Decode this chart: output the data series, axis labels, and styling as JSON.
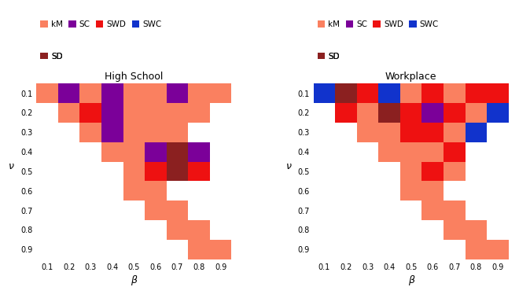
{
  "betas": [
    0.1,
    0.2,
    0.3,
    0.4,
    0.5,
    0.6,
    0.7,
    0.8,
    0.9
  ],
  "nus": [
    0.1,
    0.2,
    0.3,
    0.4,
    0.5,
    0.6,
    0.7,
    0.8,
    0.9
  ],
  "colors": {
    "kM": "#FA8060",
    "SC": "#7B0099",
    "SWD": "#EE1111",
    "SWC": "#1133CC",
    "SD": "#8B2020"
  },
  "legend_colors": {
    "kM": "#FA8060",
    "SC": "#7B0099",
    "SWD": "#EE1111",
    "SWC": "#1133CC",
    "SD": "#8B2020"
  },
  "hs_grid": [
    [
      "kM",
      "SC",
      "kM",
      "SC",
      "kM",
      "kM",
      "SC",
      "kM",
      "kM"
    ],
    [
      null,
      "kM",
      "SWD",
      "SC",
      "kM",
      "kM",
      "kM",
      "kM",
      null
    ],
    [
      null,
      null,
      "kM",
      "SC",
      "kM",
      "kM",
      "kM",
      null,
      null
    ],
    [
      null,
      null,
      null,
      "kM",
      "kM",
      "SC",
      "SD",
      "SC",
      null
    ],
    [
      null,
      null,
      null,
      null,
      "kM",
      "SWD",
      "SD",
      "SWD",
      null
    ],
    [
      null,
      null,
      null,
      null,
      "kM",
      "kM",
      null,
      null,
      null
    ],
    [
      null,
      null,
      null,
      null,
      null,
      "kM",
      "kM",
      null,
      null
    ],
    [
      null,
      null,
      null,
      null,
      null,
      null,
      "kM",
      "kM",
      null
    ],
    [
      null,
      null,
      null,
      null,
      null,
      null,
      null,
      "kM",
      "kM"
    ]
  ],
  "wp_grid": [
    [
      "SWC",
      "SD",
      "SWD",
      "SWC",
      "kM",
      "SWD",
      "kM",
      "SWD",
      "SWD"
    ],
    [
      null,
      "SWD",
      "kM",
      "SD",
      "SWD",
      "SC",
      "SWD",
      "kM",
      "SWC"
    ],
    [
      null,
      null,
      "kM",
      "kM",
      "SWD",
      "SWD",
      "kM",
      "SWC",
      null
    ],
    [
      null,
      null,
      null,
      "kM",
      "kM",
      "kM",
      "SWD",
      null,
      null
    ],
    [
      null,
      null,
      null,
      null,
      "kM",
      "SWD",
      "kM",
      null,
      null
    ],
    [
      null,
      null,
      null,
      null,
      "kM",
      "kM",
      null,
      null,
      null
    ],
    [
      null,
      null,
      null,
      null,
      null,
      "kM",
      "kM",
      null,
      null
    ],
    [
      null,
      null,
      null,
      null,
      null,
      null,
      "kM",
      "kM",
      null
    ],
    [
      null,
      null,
      null,
      null,
      null,
      null,
      null,
      "kM",
      "kM"
    ]
  ],
  "title_hs": "High School",
  "title_wp": "Workplace",
  "xlabel": "β",
  "ylabel": "ν",
  "fig_bg": "#ffffff",
  "ax_bg": "#ffffff"
}
